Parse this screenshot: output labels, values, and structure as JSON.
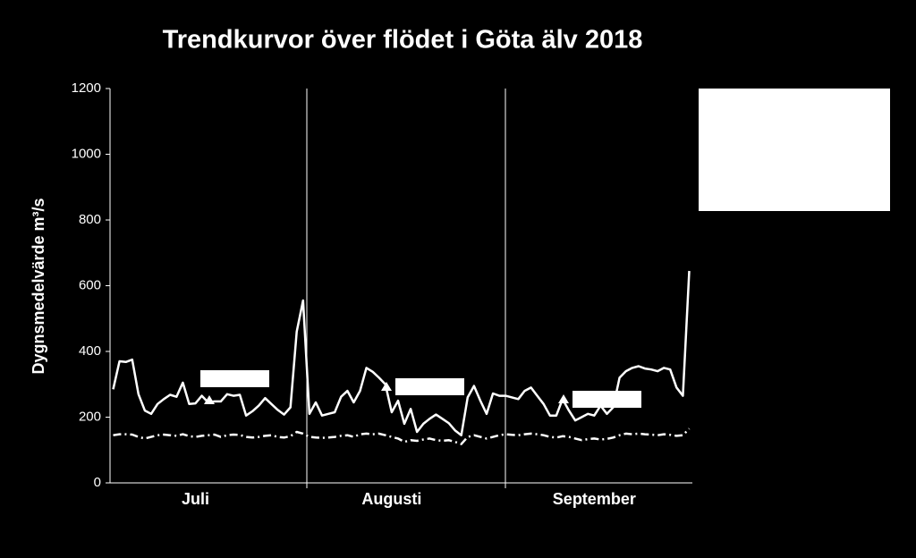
{
  "chart_data": {
    "type": "line",
    "title": "Trendkurvor över flödet i Göta älv 2018",
    "y_label": "Dygnsmedelvärde m³/s",
    "categories": [
      null,
      null,
      null,
      null,
      null,
      null,
      null,
      null,
      null,
      null,
      null,
      null,
      null,
      "Juli",
      null,
      null,
      null,
      null,
      null,
      null,
      null,
      null,
      null,
      null,
      null,
      null,
      null,
      null,
      null,
      null,
      null,
      null,
      null,
      null,
      null,
      null,
      null,
      null,
      null,
      null,
      null,
      null,
      null,
      null,
      "Augusti",
      null,
      null,
      null,
      null,
      null,
      null,
      null,
      null,
      null,
      null,
      null,
      null,
      null,
      null,
      null,
      null,
      null,
      null,
      null,
      null,
      null,
      null,
      null,
      null,
      null,
      null,
      null,
      null,
      null,
      null,
      null,
      "September",
      null,
      null,
      null,
      null,
      null,
      null,
      null,
      null,
      null,
      null,
      null,
      null,
      null,
      null,
      null
    ],
    "series": [
      {
        "color": "#ffffff",
        "style": "solid",
        "values": [
          285,
          370,
          368,
          375,
          270,
          220,
          210,
          240,
          255,
          268,
          262,
          305,
          240,
          242,
          265,
          245,
          248,
          248,
          270,
          265,
          268,
          205,
          218,
          235,
          258,
          240,
          222,
          208,
          230,
          460,
          555,
          210,
          245,
          205,
          210,
          215,
          262,
          280,
          245,
          280,
          350,
          338,
          320,
          300,
          215,
          250,
          180,
          225,
          155,
          180,
          195,
          208,
          195,
          182,
          160,
          145,
          260,
          295,
          250,
          210,
          272,
          265,
          265,
          260,
          255,
          280,
          290,
          265,
          240,
          205,
          205,
          255,
          220,
          190,
          200,
          210,
          205,
          235,
          210,
          230,
          320,
          340,
          350,
          355,
          348,
          345,
          340,
          350,
          345,
          290,
          265,
          645
        ]
      },
      {
        "color": "#ffffff",
        "style": "dashdot",
        "values": [
          145,
          148,
          148,
          147,
          140,
          135,
          140,
          145,
          147,
          145,
          143,
          148,
          142,
          140,
          143,
          145,
          147,
          140,
          145,
          147,
          146,
          140,
          138,
          140,
          143,
          145,
          140,
          138,
          142,
          155,
          150,
          140,
          138,
          137,
          138,
          140,
          143,
          145,
          140,
          148,
          150,
          148,
          150,
          145,
          140,
          135,
          125,
          130,
          128,
          132,
          135,
          130,
          128,
          130,
          125,
          118,
          140,
          145,
          140,
          135,
          140,
          145,
          148,
          146,
          145,
          148,
          150,
          148,
          145,
          140,
          138,
          142,
          140,
          135,
          130,
          133,
          135,
          132,
          134,
          138,
          145,
          150,
          148,
          150,
          148,
          147,
          145,
          148,
          146,
          143,
          145,
          165
        ]
      }
    ],
    "ylim": [
      0,
      1200
    ],
    "yticks": [
      0,
      200,
      400,
      600,
      800,
      1000,
      1200
    ],
    "grid": false
  }
}
